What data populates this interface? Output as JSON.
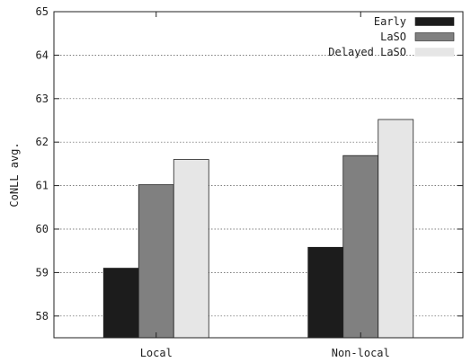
{
  "chart_data": {
    "type": "bar",
    "categories": [
      "Local",
      "Non-local"
    ],
    "series": [
      {
        "name": "Early",
        "color": "#1c1c1c",
        "values": [
          59.1,
          59.58
        ]
      },
      {
        "name": "LaSO",
        "color": "#808080",
        "values": [
          61.02,
          61.69
        ]
      },
      {
        "name": "Delayed LaSO",
        "color": "#e6e6e6",
        "values": [
          61.6,
          62.52
        ]
      }
    ],
    "title": "",
    "xlabel": "",
    "ylabel": "CoNLL avg.",
    "ylim": [
      57.5,
      65
    ],
    "yticks": [
      58,
      59,
      60,
      61,
      62,
      63,
      64,
      65
    ],
    "grid": true,
    "legend_position": "top-right"
  }
}
